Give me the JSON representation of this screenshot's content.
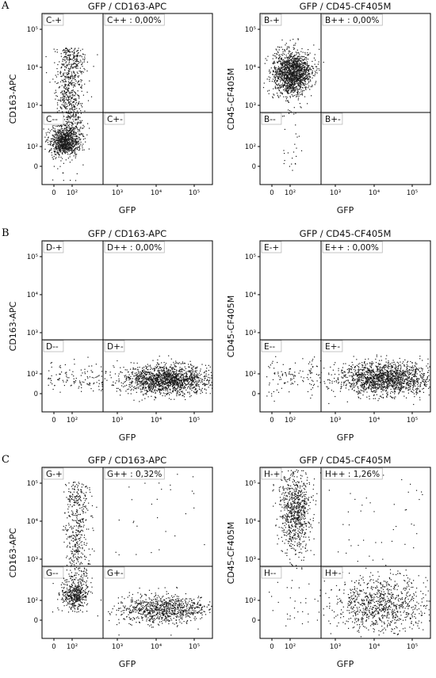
{
  "row_labels": [
    "A",
    "B",
    "C"
  ],
  "chart_data": [
    {
      "id": "C",
      "row": "A",
      "type": "scatter",
      "title": "GFP / CD163-APC",
      "xlabel": "GFP",
      "ylabel": "CD163-APC",
      "scale": "biexponential",
      "x_ticks": [
        "0",
        "10²",
        "10³",
        "10⁴",
        "10⁵"
      ],
      "y_ticks": [
        "0",
        "10²",
        "10³",
        "10⁴",
        "10⁵"
      ],
      "quadrants": {
        "top_left": "C-+",
        "top_right": "C++ : 0,00%",
        "bottom_left": "C--",
        "bottom_right": "C+-"
      },
      "populations": [
        {
          "x_center": "50",
          "y_range": [
            "100",
            "50000"
          ],
          "shape": "vertical streak",
          "density": "high"
        },
        {
          "x_center": "50",
          "y_center": "150",
          "shape": "dense cluster",
          "density": "very high"
        }
      ]
    },
    {
      "id": "B",
      "row": "A",
      "type": "scatter",
      "title": "GFP / CD45-CF405M",
      "xlabel": "GFP",
      "ylabel": "CD45-CF405M",
      "scale": "biexponential",
      "x_ticks": [
        "0",
        "10²",
        "10³",
        "10⁴",
        "10⁵"
      ],
      "y_ticks": [
        "0",
        "10²",
        "10³",
        "10⁴",
        "10⁵"
      ],
      "quadrants": {
        "top_left": "B-+",
        "top_right": "B++ : 0,00%",
        "bottom_left": "B--",
        "bottom_right": "B+-"
      },
      "populations": [
        {
          "x_center": "50",
          "y_center": "10000",
          "shape": "dense cluster",
          "density": "very high"
        }
      ]
    },
    {
      "id": "D",
      "row": "B",
      "type": "scatter",
      "title": "GFP / CD163-APC",
      "xlabel": "GFP",
      "ylabel": "CD163-APC",
      "scale": "biexponential",
      "x_ticks": [
        "0",
        "10²",
        "10³",
        "10⁴",
        "10⁵"
      ],
      "y_ticks": [
        "0",
        "10²",
        "10³",
        "10⁴",
        "10⁵"
      ],
      "quadrants": {
        "top_left": "D-+",
        "top_right": "D++ : 0,00%",
        "bottom_left": "D--",
        "bottom_right": "D+-"
      },
      "populations": [
        {
          "x_range": [
            "1000",
            "100000"
          ],
          "y_center": "50",
          "shape": "horizontal band",
          "density": "high"
        }
      ]
    },
    {
      "id": "E",
      "row": "B",
      "type": "scatter",
      "title": "GFP / CD45-CF405M",
      "xlabel": "GFP",
      "ylabel": "CD45-CF405M",
      "scale": "biexponential",
      "x_ticks": [
        "0",
        "10²",
        "10³",
        "10⁴",
        "10⁵"
      ],
      "y_ticks": [
        "0",
        "10²",
        "10³",
        "10⁴",
        "10⁵"
      ],
      "quadrants": {
        "top_left": "E-+",
        "top_right": "E++ : 0,00%",
        "bottom_left": "E--",
        "bottom_right": "E+-"
      },
      "populations": [
        {
          "x_range": [
            "1000",
            "100000"
          ],
          "y_center": "50",
          "shape": "horizontal band",
          "density": "high"
        }
      ]
    },
    {
      "id": "G",
      "row": "C",
      "type": "scatter",
      "title": "GFP / CD163-APC",
      "xlabel": "GFP",
      "ylabel": "CD163-APC",
      "scale": "biexponential",
      "x_ticks": [
        "0",
        "10²",
        "10³",
        "10⁴",
        "10⁵"
      ],
      "y_ticks": [
        "0",
        "10²",
        "10³",
        "10⁴",
        "10⁵"
      ],
      "quadrants": {
        "top_left": "G-+",
        "top_right": "G++ : 0,32%",
        "bottom_left": "G--",
        "bottom_right": "G+-"
      },
      "populations": [
        {
          "x_center": "50",
          "y_range": [
            "100",
            "50000"
          ],
          "shape": "vertical streak",
          "density": "medium"
        },
        {
          "x_range": [
            "1000",
            "100000"
          ],
          "y_center": "50",
          "shape": "horizontal band",
          "density": "medium"
        }
      ]
    },
    {
      "id": "H",
      "row": "C",
      "type": "scatter",
      "title": "GFP / CD45-CF405M",
      "xlabel": "GFP",
      "ylabel": "CD45-CF405M",
      "scale": "biexponential",
      "x_ticks": [
        "0",
        "10²",
        "10³",
        "10⁴",
        "10⁵"
      ],
      "y_ticks": [
        "0",
        "10²",
        "10³",
        "10⁴",
        "10⁵"
      ],
      "quadrants": {
        "top_left": "H-+",
        "top_right": "H++ : 1,26%",
        "bottom_left": "H--",
        "bottom_right": "H+-"
      },
      "populations": [
        {
          "x_center": "50",
          "y_range": [
            "1000",
            "50000"
          ],
          "shape": "dense cluster",
          "density": "medium"
        },
        {
          "x_range": [
            "1000",
            "100000"
          ],
          "y_center": "150",
          "shape": "diffuse cluster",
          "density": "medium"
        }
      ]
    }
  ]
}
